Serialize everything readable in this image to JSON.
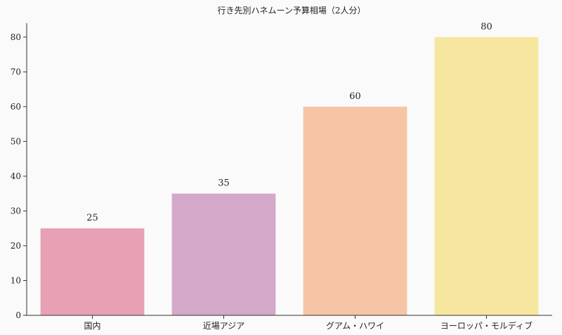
{
  "chart_data": {
    "type": "bar",
    "title": "行き先別ハネムーン予算相場（2人分）",
    "categories": [
      "国内",
      "近場アジア",
      "グアム・ハワイ",
      "ヨーロッパ・モルディブ"
    ],
    "values": [
      25,
      35,
      60,
      80
    ],
    "colors": [
      "#e8a0b4",
      "#d4a8c8",
      "#f5c5a5",
      "#f7e6a0"
    ],
    "xlabel": "",
    "ylabel": "",
    "ylim": [
      0,
      84
    ],
    "yticks": [
      0,
      10,
      20,
      30,
      40,
      50,
      60,
      70,
      80
    ],
    "grid": false,
    "data_labels": true
  }
}
